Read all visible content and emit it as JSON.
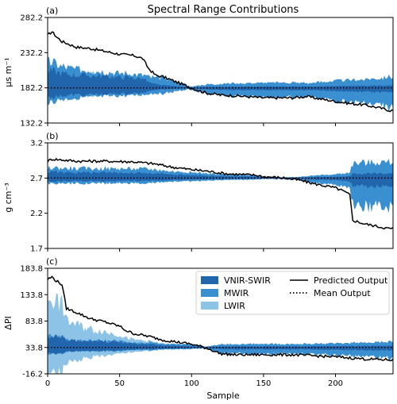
{
  "figure": {
    "title": "Spectral Range Contributions",
    "xlabel": "Sample"
  },
  "colors": {
    "vnir_swir": "#2166ac",
    "mwir": "#3a8fd0",
    "lwir": "#8cc3e6",
    "line": "#000000"
  },
  "legend": {
    "location": "top-right of panel (c)",
    "entries": [
      "VNIR-SWIR",
      "MWIR",
      "LWIR",
      "Predicted Output",
      "Mean Output"
    ]
  },
  "chart_data": [
    {
      "type": "area",
      "panel_label": "(a)",
      "title": "Spectral Range Contributions",
      "ylabel": "μs m⁻¹",
      "xlabel": "",
      "xlim": [
        0,
        240
      ],
      "ylim": [
        132.2,
        282.2
      ],
      "yticks": [
        132.2,
        182.2,
        232.2,
        282.2
      ],
      "xticks": [
        0,
        50,
        100,
        150,
        200
      ],
      "baseline": 182.2,
      "predicted_keypoints": [
        [
          0,
          257
        ],
        [
          3,
          262
        ],
        [
          6,
          255
        ],
        [
          10,
          248
        ],
        [
          20,
          240
        ],
        [
          30,
          238
        ],
        [
          40,
          234
        ],
        [
          50,
          230
        ],
        [
          60,
          228
        ],
        [
          66,
          224
        ],
        [
          70,
          210
        ],
        [
          75,
          200
        ],
        [
          80,
          198
        ],
        [
          90,
          190
        ],
        [
          95,
          186
        ],
        [
          100,
          182
        ],
        [
          110,
          175
        ],
        [
          120,
          172
        ],
        [
          130,
          171
        ],
        [
          150,
          168
        ],
        [
          170,
          168
        ],
        [
          180,
          170
        ],
        [
          185,
          168
        ],
        [
          200,
          163
        ],
        [
          210,
          160
        ],
        [
          220,
          158
        ],
        [
          230,
          154
        ],
        [
          238,
          150
        ],
        [
          240,
          150
        ]
      ],
      "series": [
        {
          "name": "VNIR-SWIR",
          "share": [
            [
              0,
              0.3
            ],
            [
              66,
              0.3
            ],
            [
              80,
              0.2
            ],
            [
              240,
              0.2
            ]
          ]
        },
        {
          "name": "MWIR",
          "share": [
            [
              0,
              0.45
            ],
            [
              66,
              0.4
            ],
            [
              80,
              0.8
            ],
            [
              240,
              0.8
            ]
          ]
        },
        {
          "name": "LWIR",
          "share": [
            [
              0,
              0.35
            ],
            [
              66,
              0.35
            ],
            [
              80,
              0.35
            ],
            [
              240,
              0.4
            ]
          ]
        }
      ]
    },
    {
      "type": "area",
      "panel_label": "(b)",
      "title": "",
      "ylabel": "g cm⁻³",
      "xlabel": "",
      "xlim": [
        0,
        240
      ],
      "ylim": [
        1.7,
        3.2
      ],
      "yticks": [
        1.7,
        2.2,
        2.7,
        3.2
      ],
      "xticks": [
        0,
        50,
        100,
        150,
        200
      ],
      "baseline": 2.7,
      "predicted_keypoints": [
        [
          0,
          2.94
        ],
        [
          3,
          2.97
        ],
        [
          20,
          2.94
        ],
        [
          40,
          2.94
        ],
        [
          60,
          2.93
        ],
        [
          75,
          2.9
        ],
        [
          85,
          2.86
        ],
        [
          100,
          2.82
        ],
        [
          110,
          2.8
        ],
        [
          125,
          2.76
        ],
        [
          145,
          2.74
        ],
        [
          150,
          2.72
        ],
        [
          165,
          2.7
        ],
        [
          175,
          2.67
        ],
        [
          185,
          2.62
        ],
        [
          200,
          2.56
        ],
        [
          205,
          2.52
        ],
        [
          210,
          2.46
        ],
        [
          212,
          2.1
        ],
        [
          220,
          2.05
        ],
        [
          230,
          2.01
        ],
        [
          238,
          1.98
        ],
        [
          240,
          1.99
        ]
      ],
      "series": [
        {
          "name": "VNIR-SWIR",
          "share": [
            [
              0,
              0.3
            ],
            [
              150,
              0.25
            ],
            [
              240,
              0.15
            ]
          ]
        },
        {
          "name": "MWIR",
          "share": [
            [
              0,
              0.5
            ],
            [
              150,
              0.55
            ],
            [
              212,
              0.6
            ],
            [
              240,
              0.55
            ]
          ]
        },
        {
          "name": "LWIR",
          "share": [
            [
              0,
              0.35
            ],
            [
              150,
              0.4
            ],
            [
              212,
              0.4
            ],
            [
              240,
              0.4
            ]
          ]
        }
      ]
    },
    {
      "type": "area",
      "panel_label": "(c)",
      "title": "",
      "ylabel": "ΔPI",
      "xlabel": "Sample",
      "xlim": [
        0,
        240
      ],
      "ylim": [
        -16.2,
        183.8
      ],
      "yticks": [
        -16.2,
        33.8,
        83.8,
        133.8,
        183.8
      ],
      "xticks": [
        0,
        50,
        100,
        150,
        200
      ],
      "baseline": 33.8,
      "predicted_keypoints": [
        [
          0,
          163
        ],
        [
          3,
          167
        ],
        [
          6,
          160
        ],
        [
          10,
          153
        ],
        [
          13,
          108
        ],
        [
          20,
          100
        ],
        [
          30,
          88
        ],
        [
          40,
          82
        ],
        [
          50,
          74
        ],
        [
          55,
          65
        ],
        [
          60,
          60
        ],
        [
          70,
          55
        ],
        [
          80,
          48
        ],
        [
          90,
          44
        ],
        [
          100,
          40
        ],
        [
          110,
          33
        ],
        [
          115,
          28
        ],
        [
          120,
          22
        ],
        [
          130,
          20
        ],
        [
          150,
          20
        ],
        [
          170,
          20
        ],
        [
          200,
          16
        ],
        [
          220,
          12
        ],
        [
          240,
          10
        ]
      ],
      "series": [
        {
          "name": "VNIR-SWIR",
          "share": [
            [
              0,
              0.15
            ],
            [
              60,
              0.25
            ],
            [
              120,
              0.2
            ],
            [
              240,
              0.2
            ]
          ]
        },
        {
          "name": "MWIR",
          "share": [
            [
              0,
              0.15
            ],
            [
              60,
              0.3
            ],
            [
              120,
              0.65
            ],
            [
              240,
              0.7
            ]
          ]
        },
        {
          "name": "LWIR",
          "share": [
            [
              0,
              0.7
            ],
            [
              60,
              0.5
            ],
            [
              120,
              0.3
            ],
            [
              240,
              0.3
            ]
          ]
        }
      ]
    }
  ]
}
